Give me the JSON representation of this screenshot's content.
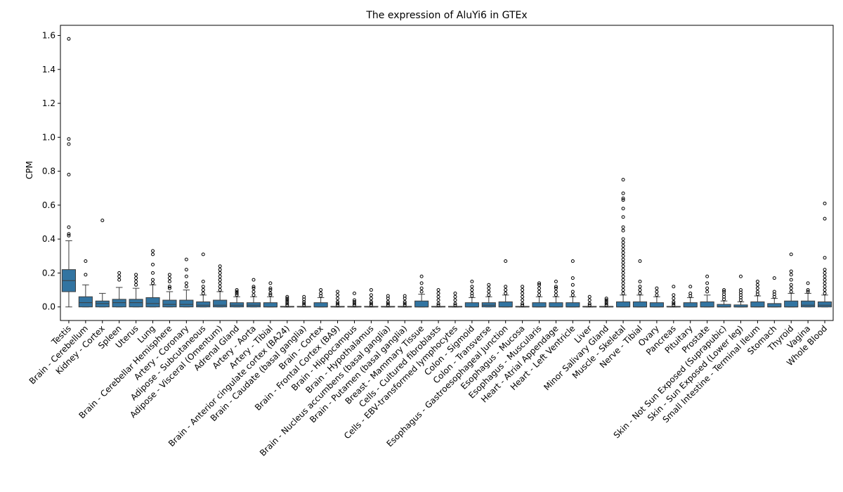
{
  "chart_data": {
    "type": "box",
    "title": "The expression of AluYi6 in GTEx",
    "xlabel": "",
    "ylabel": "CPM",
    "ylim": [
      -0.08,
      1.66
    ],
    "yticks": [
      "0.0",
      "0.2",
      "0.4",
      "0.6",
      "0.8",
      "1.0",
      "1.2",
      "1.4",
      "1.6"
    ],
    "grid": false,
    "box_color": "#3274a1",
    "categories": [
      "Testis",
      "Brain - Cerebellum",
      "Kidney - Cortex",
      "Spleen",
      "Uterus",
      "Lung",
      "Brain - Cerebellar Hemisphere",
      "Artery - Coronary",
      "Adipose - Subcutaneous",
      "Adipose - Visceral (Omentum)",
      "Adrenal Gland",
      "Artery - Aorta",
      "Artery - Tibial",
      "Brain - Anterior cingulate cortex (BA24)",
      "Brain - Caudate (basal ganglia)",
      "Brain - Cortex",
      "Brain - Frontal Cortex (BA9)",
      "Brain - Hippocampus",
      "Brain - Hypothalamus",
      "Brain - Nucleus accumbens (basal ganglia)",
      "Brain - Putamen (basal ganglia)",
      "Breast - Mammary Tissue",
      "Cells - Cultured fibroblasts",
      "Cells - EBV-transformed lymphocytes",
      "Colon - Sigmoid",
      "Colon - Transverse",
      "Esophagus - Gastroesophageal Junction",
      "Esophagus - Mucosa",
      "Esophagus - Muscularis",
      "Heart - Atrial Appendage",
      "Heart - Left Ventricle",
      "Liver",
      "Minor Salivary Gland",
      "Muscle - Skeletal",
      "Nerve - Tibial",
      "Ovary",
      "Pancreas",
      "Pituitary",
      "Prostate",
      "Skin - Not Sun Exposed (Suprapubic)",
      "Skin - Sun Exposed (Lower leg)",
      "Small Intestine - Terminal Ileum",
      "Stomach",
      "Thyroid",
      "Vagina",
      "Whole Blood"
    ],
    "boxes": [
      {
        "q1": 0.09,
        "median": 0.155,
        "q3": 0.22,
        "whislo": 0.0,
        "whishi": 0.39,
        "fliers": [
          0.42,
          0.43,
          0.47,
          0.78,
          0.96,
          0.99,
          1.58
        ]
      },
      {
        "q1": 0.0,
        "median": 0.025,
        "q3": 0.06,
        "whislo": 0.0,
        "whishi": 0.13,
        "fliers": [
          0.19,
          0.27
        ]
      },
      {
        "q1": 0.0,
        "median": 0.02,
        "q3": 0.035,
        "whislo": 0.0,
        "whishi": 0.08,
        "fliers": [
          0.51
        ]
      },
      {
        "q1": 0.0,
        "median": 0.025,
        "q3": 0.045,
        "whislo": 0.0,
        "whishi": 0.115,
        "fliers": [
          0.16,
          0.18,
          0.2
        ]
      },
      {
        "q1": 0.0,
        "median": 0.025,
        "q3": 0.045,
        "whislo": 0.0,
        "whishi": 0.11,
        "fliers": [
          0.13,
          0.15,
          0.17,
          0.19
        ]
      },
      {
        "q1": 0.0,
        "median": 0.02,
        "q3": 0.055,
        "whislo": 0.0,
        "whishi": 0.13,
        "fliers": [
          0.14,
          0.16,
          0.2,
          0.25,
          0.31,
          0.33
        ]
      },
      {
        "q1": 0.0,
        "median": 0.015,
        "q3": 0.04,
        "whislo": 0.0,
        "whishi": 0.09,
        "fliers": [
          0.11,
          0.12,
          0.15,
          0.17,
          0.19
        ]
      },
      {
        "q1": 0.0,
        "median": 0.015,
        "q3": 0.04,
        "whislo": 0.0,
        "whishi": 0.1,
        "fliers": [
          0.12,
          0.14,
          0.18,
          0.22,
          0.28
        ]
      },
      {
        "q1": 0.0,
        "median": 0.01,
        "q3": 0.03,
        "whislo": 0.0,
        "whishi": 0.07,
        "fliers": [
          0.08,
          0.1,
          0.12,
          0.15,
          0.31
        ]
      },
      {
        "q1": 0.0,
        "median": 0.01,
        "q3": 0.04,
        "whislo": 0.0,
        "whishi": 0.09,
        "fliers": [
          0.1,
          0.12,
          0.14,
          0.16,
          0.18,
          0.2,
          0.22,
          0.24
        ]
      },
      {
        "q1": 0.0,
        "median": 0.01,
        "q3": 0.025,
        "whislo": 0.0,
        "whishi": 0.06,
        "fliers": [
          0.07,
          0.08,
          0.09,
          0.1
        ]
      },
      {
        "q1": 0.0,
        "median": 0.01,
        "q3": 0.025,
        "whislo": 0.0,
        "whishi": 0.06,
        "fliers": [
          0.07,
          0.09,
          0.11,
          0.12,
          0.16
        ]
      },
      {
        "q1": 0.0,
        "median": 0.0,
        "q3": 0.025,
        "whislo": 0.0,
        "whishi": 0.06,
        "fliers": [
          0.07,
          0.08,
          0.1,
          0.11,
          0.14
        ]
      },
      {
        "q1": 0.0,
        "median": 0.0,
        "q3": 0.0,
        "whislo": 0.0,
        "whishi": 0.0,
        "fliers": [
          0.01,
          0.02,
          0.03,
          0.04,
          0.05,
          0.06
        ]
      },
      {
        "q1": 0.0,
        "median": 0.0,
        "q3": 0.0,
        "whislo": 0.0,
        "whishi": 0.0,
        "fliers": [
          0.01,
          0.02,
          0.03,
          0.045,
          0.06
        ]
      },
      {
        "q1": 0.0,
        "median": 0.0,
        "q3": 0.025,
        "whislo": 0.0,
        "whishi": 0.055,
        "fliers": [
          0.065,
          0.08,
          0.1
        ]
      },
      {
        "q1": 0.0,
        "median": 0.0,
        "q3": 0.0,
        "whislo": 0.0,
        "whishi": 0.0,
        "fliers": [
          0.01,
          0.02,
          0.03,
          0.05,
          0.07,
          0.09
        ]
      },
      {
        "q1": 0.0,
        "median": 0.0,
        "q3": 0.0,
        "whislo": 0.0,
        "whishi": 0.0,
        "fliers": [
          0.01,
          0.02,
          0.03,
          0.04,
          0.08
        ]
      },
      {
        "q1": 0.0,
        "median": 0.0,
        "q3": 0.0,
        "whislo": 0.0,
        "whishi": 0.0,
        "fliers": [
          0.01,
          0.02,
          0.03,
          0.05,
          0.07,
          0.1
        ]
      },
      {
        "q1": 0.0,
        "median": 0.0,
        "q3": 0.0,
        "whislo": 0.0,
        "whishi": 0.0,
        "fliers": [
          0.01,
          0.02,
          0.03,
          0.05,
          0.065
        ]
      },
      {
        "q1": 0.0,
        "median": 0.0,
        "q3": 0.0,
        "whislo": 0.0,
        "whishi": 0.0,
        "fliers": [
          0.01,
          0.02,
          0.03,
          0.05,
          0.065
        ]
      },
      {
        "q1": 0.0,
        "median": 0.0,
        "q3": 0.035,
        "whislo": 0.0,
        "whishi": 0.075,
        "fliers": [
          0.09,
          0.11,
          0.14,
          0.18
        ]
      },
      {
        "q1": 0.0,
        "median": 0.0,
        "q3": 0.0,
        "whislo": 0.0,
        "whishi": 0.0,
        "fliers": [
          0.01,
          0.02,
          0.04,
          0.06,
          0.08,
          0.1
        ]
      },
      {
        "q1": 0.0,
        "median": 0.0,
        "q3": 0.0,
        "whislo": 0.0,
        "whishi": 0.0,
        "fliers": [
          0.01,
          0.02,
          0.04,
          0.06,
          0.08
        ]
      },
      {
        "q1": 0.0,
        "median": 0.0,
        "q3": 0.025,
        "whislo": 0.0,
        "whishi": 0.055,
        "fliers": [
          0.065,
          0.08,
          0.1,
          0.12,
          0.15
        ]
      },
      {
        "q1": 0.0,
        "median": 0.01,
        "q3": 0.025,
        "whislo": 0.0,
        "whishi": 0.06,
        "fliers": [
          0.07,
          0.09,
          0.11,
          0.13
        ]
      },
      {
        "q1": 0.0,
        "median": 0.0,
        "q3": 0.03,
        "whislo": 0.0,
        "whishi": 0.07,
        "fliers": [
          0.08,
          0.1,
          0.12,
          0.27
        ]
      },
      {
        "q1": 0.0,
        "median": 0.0,
        "q3": 0.0,
        "whislo": 0.0,
        "whishi": 0.0,
        "fliers": [
          0.01,
          0.02,
          0.04,
          0.06,
          0.08,
          0.1,
          0.12
        ]
      },
      {
        "q1": 0.0,
        "median": 0.0,
        "q3": 0.025,
        "whislo": 0.0,
        "whishi": 0.06,
        "fliers": [
          0.07,
          0.09,
          0.11,
          0.13,
          0.14
        ]
      },
      {
        "q1": 0.0,
        "median": 0.0,
        "q3": 0.025,
        "whislo": 0.0,
        "whishi": 0.06,
        "fliers": [
          0.07,
          0.09,
          0.11,
          0.12,
          0.15
        ]
      },
      {
        "q1": 0.0,
        "median": 0.0,
        "q3": 0.025,
        "whislo": 0.0,
        "whishi": 0.06,
        "fliers": [
          0.07,
          0.09,
          0.13,
          0.17,
          0.27
        ]
      },
      {
        "q1": 0.0,
        "median": 0.0,
        "q3": 0.0,
        "whislo": 0.0,
        "whishi": 0.0,
        "fliers": [
          0.01,
          0.02,
          0.04,
          0.06
        ]
      },
      {
        "q1": 0.0,
        "median": 0.0,
        "q3": 0.0,
        "whislo": 0.0,
        "whishi": 0.0,
        "fliers": [
          0.01,
          0.02,
          0.03,
          0.04,
          0.05
        ]
      },
      {
        "q1": 0.0,
        "median": 0.0,
        "q3": 0.03,
        "whislo": 0.0,
        "whishi": 0.07,
        "fliers": [
          0.08,
          0.1,
          0.12,
          0.14,
          0.16,
          0.18,
          0.2,
          0.22,
          0.24,
          0.26,
          0.28,
          0.3,
          0.32,
          0.34,
          0.36,
          0.38,
          0.4,
          0.45,
          0.47,
          0.53,
          0.58,
          0.63,
          0.64,
          0.67,
          0.75
        ]
      },
      {
        "q1": 0.0,
        "median": 0.0,
        "q3": 0.03,
        "whislo": 0.0,
        "whishi": 0.07,
        "fliers": [
          0.08,
          0.1,
          0.12,
          0.15,
          0.27
        ]
      },
      {
        "q1": 0.0,
        "median": 0.0,
        "q3": 0.025,
        "whislo": 0.0,
        "whishi": 0.06,
        "fliers": [
          0.07,
          0.09,
          0.11
        ]
      },
      {
        "q1": 0.0,
        "median": 0.0,
        "q3": 0.0,
        "whislo": 0.0,
        "whishi": 0.0,
        "fliers": [
          0.01,
          0.02,
          0.03,
          0.05,
          0.07,
          0.12
        ]
      },
      {
        "q1": 0.0,
        "median": 0.0,
        "q3": 0.025,
        "whislo": 0.0,
        "whishi": 0.055,
        "fliers": [
          0.065,
          0.08,
          0.12
        ]
      },
      {
        "q1": 0.0,
        "median": 0.0,
        "q3": 0.03,
        "whislo": 0.0,
        "whishi": 0.07,
        "fliers": [
          0.09,
          0.11,
          0.14,
          0.18
        ]
      },
      {
        "q1": 0.0,
        "median": 0.0,
        "q3": 0.015,
        "whislo": 0.0,
        "whishi": 0.035,
        "fliers": [
          0.045,
          0.06,
          0.075,
          0.09,
          0.1
        ]
      },
      {
        "q1": 0.0,
        "median": 0.0,
        "q3": 0.012,
        "whislo": 0.0,
        "whishi": 0.03,
        "fliers": [
          0.04,
          0.055,
          0.07,
          0.085,
          0.1,
          0.18
        ]
      },
      {
        "q1": 0.0,
        "median": 0.0,
        "q3": 0.03,
        "whislo": 0.0,
        "whishi": 0.065,
        "fliers": [
          0.075,
          0.09,
          0.11,
          0.13,
          0.15
        ]
      },
      {
        "q1": 0.0,
        "median": 0.0,
        "q3": 0.02,
        "whislo": 0.0,
        "whishi": 0.05,
        "fliers": [
          0.06,
          0.075,
          0.09,
          0.17
        ]
      },
      {
        "q1": 0.0,
        "median": 0.0,
        "q3": 0.035,
        "whislo": 0.0,
        "whishi": 0.08,
        "fliers": [
          0.09,
          0.11,
          0.13,
          0.16,
          0.19,
          0.21,
          0.31
        ]
      },
      {
        "q1": 0.0,
        "median": 0.01,
        "q3": 0.035,
        "whislo": 0.0,
        "whishi": 0.08,
        "fliers": [
          0.09,
          0.1,
          0.14
        ]
      },
      {
        "q1": 0.0,
        "median": 0.01,
        "q3": 0.03,
        "whislo": 0.0,
        "whishi": 0.07,
        "fliers": [
          0.08,
          0.1,
          0.12,
          0.14,
          0.16,
          0.18,
          0.2,
          0.22,
          0.29,
          0.52,
          0.61
        ]
      }
    ]
  }
}
